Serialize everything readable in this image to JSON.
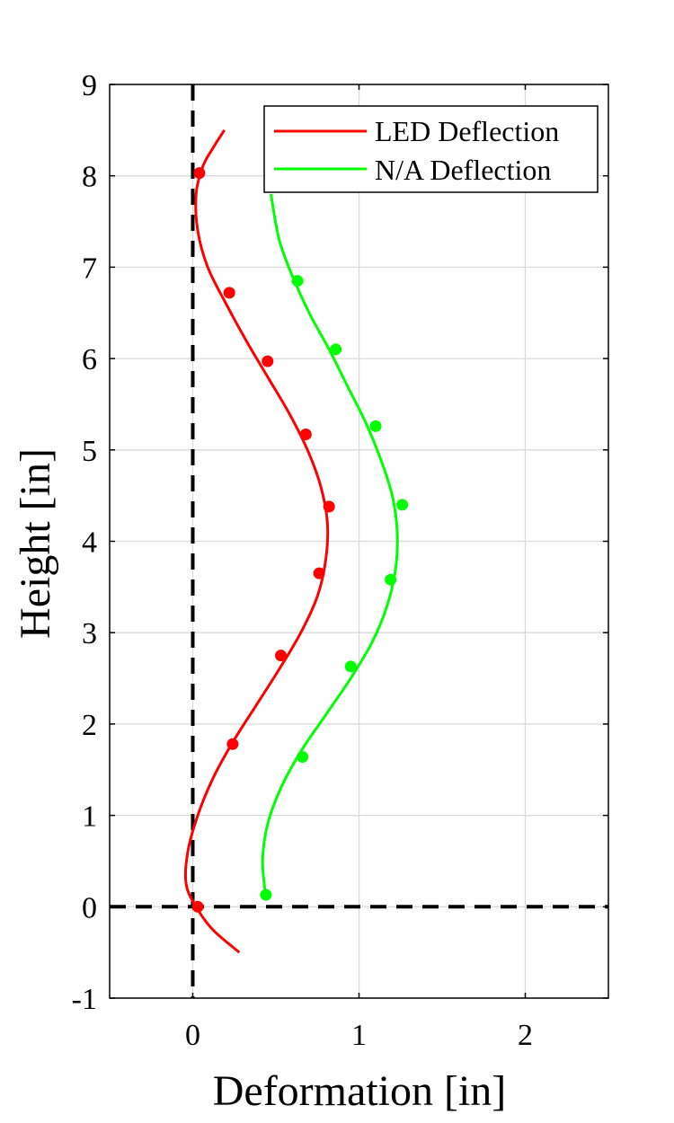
{
  "chart_data": {
    "type": "line",
    "title": "",
    "xlabel": "Deformation [in]",
    "ylabel": "Height [in]",
    "xlim": [
      -0.5,
      2.5
    ],
    "ylim": [
      -1,
      9
    ],
    "xticks": [
      0,
      1,
      2
    ],
    "yticks": [
      -1,
      0,
      1,
      2,
      3,
      4,
      5,
      6,
      7,
      8,
      9
    ],
    "grid": true,
    "legend_position": "top-right",
    "reference_lines": [
      {
        "orientation": "vertical",
        "value": 0,
        "style": "dashed",
        "color": "#000000"
      },
      {
        "orientation": "horizontal",
        "value": 0,
        "style": "dashed",
        "color": "#000000"
      }
    ],
    "series": [
      {
        "name": "LED Deflection",
        "color": "#ff0000",
        "curve": {
          "x": [
            0.28,
            0.12,
            0.02,
            -0.04,
            -0.03,
            0.03,
            0.12,
            0.24,
            0.38,
            0.52,
            0.65,
            0.75,
            0.8,
            0.81,
            0.77,
            0.69,
            0.58,
            0.45,
            0.32,
            0.2,
            0.09,
            0.03,
            0.02,
            0.06,
            0.12,
            0.19
          ],
          "y": [
            -0.5,
            -0.25,
            0.0,
            0.25,
            0.6,
            1.0,
            1.4,
            1.8,
            2.2,
            2.6,
            3.0,
            3.4,
            3.8,
            4.2,
            4.6,
            5.0,
            5.4,
            5.8,
            6.2,
            6.6,
            7.0,
            7.4,
            7.8,
            8.1,
            8.3,
            8.5
          ]
        },
        "points": {
          "x": [
            0.03,
            0.24,
            0.53,
            0.76,
            0.82,
            0.68,
            0.45,
            0.22,
            0.04
          ],
          "y": [
            0.0,
            1.78,
            2.75,
            3.65,
            4.38,
            5.17,
            5.97,
            6.72,
            8.03
          ]
        }
      },
      {
        "name": "N/A Deflection",
        "color": "#00ff00",
        "curve": {
          "x": [
            0.44,
            0.42,
            0.45,
            0.53,
            0.65,
            0.8,
            0.95,
            1.08,
            1.17,
            1.22,
            1.23,
            1.2,
            1.13,
            1.04,
            0.93,
            0.82,
            0.7,
            0.6,
            0.52,
            0.47
          ],
          "y": [
            0.1,
            0.5,
            0.9,
            1.3,
            1.7,
            2.1,
            2.5,
            2.9,
            3.3,
            3.7,
            4.1,
            4.5,
            4.9,
            5.3,
            5.7,
            6.1,
            6.5,
            6.9,
            7.3,
            7.8
          ]
        },
        "points": {
          "x": [
            0.44,
            0.66,
            0.95,
            1.19,
            1.26,
            1.1,
            0.86,
            0.63
          ],
          "y": [
            0.13,
            1.64,
            2.63,
            3.58,
            4.4,
            5.26,
            6.1,
            6.85
          ]
        }
      }
    ]
  }
}
